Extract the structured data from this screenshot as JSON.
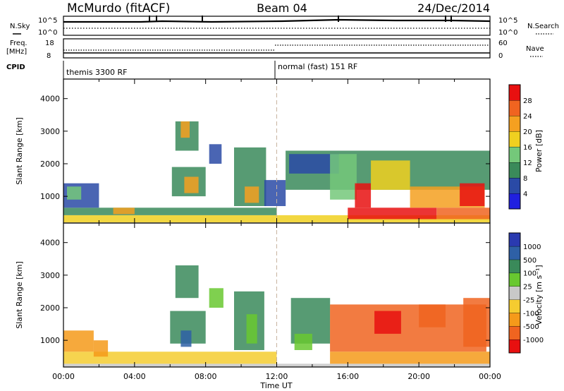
{
  "header": {
    "station": "McMurdo (fitACF)",
    "beam": "Beam 04",
    "date": "24/Dec/2014"
  },
  "noise_panel": {
    "left_label": "N.Sky",
    "right_label": "N.Search",
    "left_ticks": [
      "10^5",
      "10^0"
    ],
    "right_ticks": [
      "10^5",
      "10^0"
    ]
  },
  "freq_panel": {
    "left_label": "Freq.",
    "left_unit": "[MHz]",
    "right_label": "Nave",
    "left_ticks": [
      "18",
      "8"
    ],
    "right_ticks": [
      "60",
      "0"
    ]
  },
  "cpid": {
    "label": "CPID",
    "modes": [
      {
        "name": "themis 3300 RF",
        "start_hour": 0
      },
      {
        "name": "normal (fast) 151 RF",
        "start_hour": 12
      }
    ]
  },
  "chart_data": [
    {
      "type": "heatmap",
      "panel": "power",
      "ylabel": "Slant Range [km]",
      "ylim": [
        180,
        4600
      ],
      "yticks": [
        1000,
        2000,
        3000,
        4000
      ],
      "xlim": [
        0,
        24
      ],
      "colorbar": {
        "label": "Power [dB]",
        "bins": [
          {
            "color": "#2020e0",
            "tick": "4"
          },
          {
            "color": "#2a4aa6",
            "tick": "8"
          },
          {
            "color": "#3a8a5a",
            "tick": "12"
          },
          {
            "color": "#74c87a",
            "tick": "16"
          },
          {
            "color": "#f0d020",
            "tick": "20"
          },
          {
            "color": "#f5a020",
            "tick": "24"
          },
          {
            "color": "#f06420",
            "tick": "28"
          },
          {
            "color": "#e81010",
            "tick": ""
          }
        ]
      },
      "regions": [
        {
          "t0": 0.0,
          "t1": 12.0,
          "r0": 200,
          "r1": 420,
          "level": 4
        },
        {
          "t0": 0.0,
          "t1": 12.0,
          "r0": 420,
          "r1": 650,
          "level": 2
        },
        {
          "t0": 0.0,
          "t1": 2.0,
          "r0": 650,
          "r1": 1400,
          "level": 1
        },
        {
          "t0": 0.2,
          "t1": 1.0,
          "r0": 900,
          "r1": 1300,
          "level": 3
        },
        {
          "t0": 2.8,
          "t1": 4.0,
          "r0": 450,
          "r1": 650,
          "level": 5
        },
        {
          "t0": 6.3,
          "t1": 7.6,
          "r0": 2400,
          "r1": 3300,
          "level": 2
        },
        {
          "t0": 6.6,
          "t1": 7.1,
          "r0": 2800,
          "r1": 3300,
          "level": 5
        },
        {
          "t0": 6.1,
          "t1": 8.0,
          "r0": 1000,
          "r1": 1900,
          "level": 2
        },
        {
          "t0": 6.8,
          "t1": 7.6,
          "r0": 1100,
          "r1": 1600,
          "level": 5
        },
        {
          "t0": 8.2,
          "t1": 8.9,
          "r0": 2000,
          "r1": 2600,
          "level": 1
        },
        {
          "t0": 9.6,
          "t1": 11.4,
          "r0": 700,
          "r1": 2500,
          "level": 2
        },
        {
          "t0": 10.2,
          "t1": 11.0,
          "r0": 800,
          "r1": 1300,
          "level": 5
        },
        {
          "t0": 11.3,
          "t1": 12.5,
          "r0": 700,
          "r1": 1500,
          "level": 1
        },
        {
          "t0": 12.0,
          "t1": 24.0,
          "r0": 200,
          "r1": 420,
          "level": 4
        },
        {
          "t0": 12.5,
          "t1": 24.0,
          "r0": 1200,
          "r1": 2400,
          "level": 2
        },
        {
          "t0": 12.7,
          "t1": 15.5,
          "r0": 1700,
          "r1": 2300,
          "level": 1
        },
        {
          "t0": 15.0,
          "t1": 16.5,
          "r0": 900,
          "r1": 2300,
          "level": 3
        },
        {
          "t0": 16.0,
          "t1": 21.0,
          "r0": 300,
          "r1": 650,
          "level": 7
        },
        {
          "t0": 16.4,
          "t1": 17.3,
          "r0": 650,
          "r1": 1400,
          "level": 7
        },
        {
          "t0": 17.3,
          "t1": 19.5,
          "r0": 1200,
          "r1": 2100,
          "level": 4
        },
        {
          "t0": 19.5,
          "t1": 23.7,
          "r0": 650,
          "r1": 1300,
          "level": 5
        },
        {
          "t0": 21.0,
          "t1": 24.0,
          "r0": 300,
          "r1": 650,
          "level": 6
        },
        {
          "t0": 22.3,
          "t1": 23.7,
          "r0": 700,
          "r1": 1400,
          "level": 7
        }
      ]
    },
    {
      "type": "heatmap",
      "panel": "velocity",
      "ylabel": "Slant Range [km]",
      "xlabel": "Time UT",
      "ylim": [
        180,
        4600
      ],
      "yticks": [
        1000,
        2000,
        3000,
        4000
      ],
      "xlim": [
        0,
        24
      ],
      "xticks": [
        "00:00",
        "04:00",
        "08:00",
        "12:00",
        "16:00",
        "20:00",
        "00:00"
      ],
      "colorbar": {
        "label": "Velocity [m s⁻¹]",
        "bins": [
          {
            "color": "#e81010",
            "tick": "-1000"
          },
          {
            "color": "#f06420",
            "tick": "-500"
          },
          {
            "color": "#f59a1a",
            "tick": "-100"
          },
          {
            "color": "#f5cc30",
            "tick": "-25"
          },
          {
            "color": "#c8c8c8",
            "tick": "25"
          },
          {
            "color": "#68c830",
            "tick": "100"
          },
          {
            "color": "#3a8a5a",
            "tick": "500"
          },
          {
            "color": "#2e60a6",
            "tick": "1000"
          },
          {
            "color": "#2a3ab0",
            "tick": ""
          }
        ]
      },
      "regions": [
        {
          "t0": 0.0,
          "t1": 24.0,
          "r0": 180,
          "r1": 280,
          "level": 4
        },
        {
          "t0": 0.0,
          "t1": 12.0,
          "r0": 280,
          "r1": 650,
          "level": 3
        },
        {
          "t0": 0.0,
          "t1": 1.7,
          "r0": 650,
          "r1": 1300,
          "level": 2
        },
        {
          "t0": 1.7,
          "t1": 2.5,
          "r0": 500,
          "r1": 1000,
          "level": 2
        },
        {
          "t0": 6.3,
          "t1": 7.6,
          "r0": 2300,
          "r1": 3300,
          "level": 6
        },
        {
          "t0": 6.0,
          "t1": 8.0,
          "r0": 900,
          "r1": 1900,
          "level": 6
        },
        {
          "t0": 6.6,
          "t1": 7.2,
          "r0": 800,
          "r1": 1300,
          "level": 7
        },
        {
          "t0": 8.2,
          "t1": 9.0,
          "r0": 2000,
          "r1": 2600,
          "level": 5
        },
        {
          "t0": 9.6,
          "t1": 11.3,
          "r0": 700,
          "r1": 2500,
          "level": 6
        },
        {
          "t0": 10.3,
          "t1": 10.9,
          "r0": 900,
          "r1": 1800,
          "level": 5
        },
        {
          "t0": 12.8,
          "t1": 15.0,
          "r0": 900,
          "r1": 2300,
          "level": 6
        },
        {
          "t0": 13.0,
          "t1": 14.0,
          "r0": 700,
          "r1": 1200,
          "level": 5
        },
        {
          "t0": 15.0,
          "t1": 23.8,
          "r0": 650,
          "r1": 2100,
          "level": 1
        },
        {
          "t0": 15.0,
          "t1": 24.0,
          "r0": 280,
          "r1": 650,
          "level": 2
        },
        {
          "t0": 17.5,
          "t1": 19.0,
          "r0": 1200,
          "r1": 1900,
          "level": 0
        },
        {
          "t0": 20.0,
          "t1": 21.5,
          "r0": 1400,
          "r1": 2100,
          "level": 1
        },
        {
          "t0": 22.5,
          "t1": 24.0,
          "r0": 800,
          "r1": 2300,
          "level": 1
        }
      ]
    }
  ]
}
